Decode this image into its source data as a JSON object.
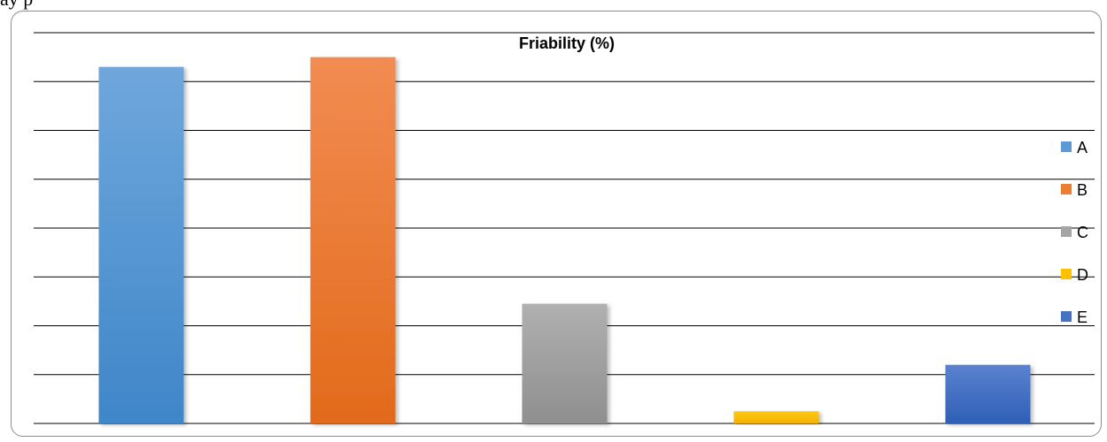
{
  "page": {
    "top_text": "ay p"
  },
  "chart_data": {
    "type": "bar",
    "title": "Friability (%)",
    "categories": [
      "A",
      "B",
      "C",
      "D",
      "E"
    ],
    "values": [
      0.73,
      0.75,
      0.245,
      0.025,
      0.12
    ],
    "colors": [
      "#5b9bd5",
      "#ed7d31",
      "#a5a5a5",
      "#ffc000",
      "#4472c4"
    ],
    "ylim": [
      0,
      0.8
    ],
    "y_gridlines": 8,
    "grid": true,
    "legend": {
      "position": "right",
      "items": [
        "A",
        "B",
        "C",
        "D",
        "E"
      ]
    }
  }
}
